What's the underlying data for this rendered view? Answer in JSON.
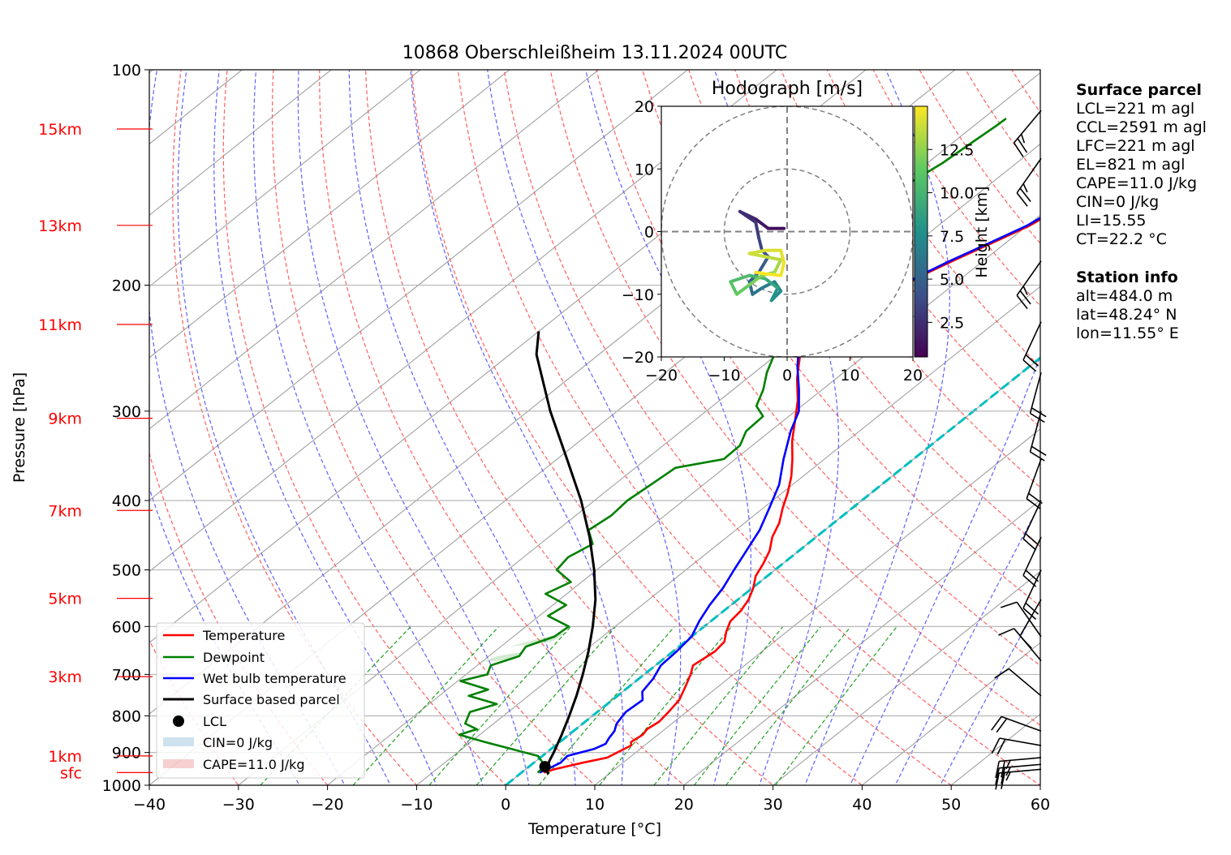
{
  "title": "10868 Oberschleißheim 13.11.2024 00UTC",
  "axes": {
    "xlabel": "Temperature [°C]",
    "ylabel": "Pressure [hPa]"
  },
  "colors": {
    "temperature": "#ff0000",
    "dewpoint": "#008000",
    "wetbulb": "#0000ff",
    "parcel": "#000000",
    "dry_adiabat": "#ff6060",
    "moist_adiabat": "#6060ff",
    "mixing_ratio": "#22a022",
    "zero_isotherm": "#00bfbf",
    "isotherm": "#a0a0a0"
  },
  "legend": {
    "temperature": "Temperature",
    "dewpoint": "Dewpoint",
    "wetbulb": "Wet bulb temperature",
    "parcel": "Surface based parcel",
    "lcl": "LCL",
    "cin": "CIN=0 J/kg",
    "cape": "CAPE=11.0 J/kg"
  },
  "surface_parcel": {
    "header": "Surface parcel",
    "lines": [
      "LCL=221 m agl",
      "CCL=2591 m agl",
      "LFC=221 m agl",
      "EL=821 m agl",
      "CAPE=11.0 J/kg",
      "CIN=0 J/kg",
      "LI=15.55",
      "CT=22.2 °C"
    ]
  },
  "station_info": {
    "header": "Station info",
    "lines": [
      "alt=484.0 m",
      "lat=48.24° N",
      "lon=11.55° E"
    ]
  },
  "hodograph": {
    "title": "Hodograph [m/s]",
    "colorbar_label": "Height [km]",
    "colorbar_ticks": [
      "2.5",
      "5.0",
      "7.5",
      "10.0",
      "12.5"
    ],
    "colorbar_tick_values": [
      2.5,
      5.0,
      7.5,
      10.0,
      12.5
    ],
    "colorbar_range": [
      0.5,
      15.0
    ],
    "xticks": [
      "−20",
      "−10",
      "0",
      "10",
      "20"
    ],
    "yticks": [
      "20",
      "10",
      "0",
      "−10",
      "−20"
    ],
    "range": [
      -20,
      20
    ],
    "rings": [
      10,
      20
    ],
    "trace": [
      {
        "u": -0.5,
        "v": 0.5,
        "h": 0.5
      },
      {
        "u": -3,
        "v": 0.5,
        "h": 1.0
      },
      {
        "u": -5,
        "v": 2,
        "h": 1.5
      },
      {
        "u": -7.5,
        "v": 3.2,
        "h": 2.0
      },
      {
        "u": -5,
        "v": 1.5,
        "h": 2.5
      },
      {
        "u": -4.5,
        "v": -1,
        "h": 3.0
      },
      {
        "u": -4,
        "v": -3,
        "h": 3.5
      },
      {
        "u": -3,
        "v": -4,
        "h": 4.0
      },
      {
        "u": -4.5,
        "v": -6.5,
        "h": 4.5
      },
      {
        "u": -6,
        "v": -8,
        "h": 5.0
      },
      {
        "u": -5.5,
        "v": -10,
        "h": 5.5
      },
      {
        "u": -4,
        "v": -9,
        "h": 6.0
      },
      {
        "u": -2,
        "v": -8,
        "h": 6.5
      },
      {
        "u": -1,
        "v": -9.5,
        "h": 7.0
      },
      {
        "u": -2.5,
        "v": -11,
        "h": 7.5
      },
      {
        "u": -1.5,
        "v": -9,
        "h": 8.0
      },
      {
        "u": -3.5,
        "v": -7.5,
        "h": 9.0
      },
      {
        "u": -6,
        "v": -7,
        "h": 10.0
      },
      {
        "u": -9,
        "v": -8,
        "h": 10.5
      },
      {
        "u": -8,
        "v": -10,
        "h": 11.0
      },
      {
        "u": -6,
        "v": -8.5,
        "h": 11.5
      },
      {
        "u": -4,
        "v": -7,
        "h": 12.0
      },
      {
        "u": -2,
        "v": -6.5,
        "h": 12.5
      },
      {
        "u": -1,
        "v": -4.5,
        "h": 13.0
      },
      {
        "u": -3.5,
        "v": -4,
        "h": 13.5
      },
      {
        "u": -6,
        "v": -3.5,
        "h": 13.8
      },
      {
        "u": -3.5,
        "v": -3,
        "h": 14.0
      },
      {
        "u": -1,
        "v": -3,
        "h": 14.2
      },
      {
        "u": -0.5,
        "v": -5,
        "h": 14.4
      },
      {
        "u": -1,
        "v": -7,
        "h": 14.6
      },
      {
        "u": -3,
        "v": -6.8,
        "h": 14.8
      },
      {
        "u": -5,
        "v": -6.5,
        "h": 15.0
      }
    ]
  },
  "chart_data": {
    "type": "line",
    "diagram": "skew-T log-p",
    "xlabel": "Temperature [°C]",
    "ylabel": "Pressure [hPa]",
    "xlim": [
      -40,
      60
    ],
    "ylim": [
      1000,
      100
    ],
    "y_scale": "log",
    "xticks": [
      "−40",
      "−30",
      "−20",
      "−10",
      "0",
      "10",
      "20",
      "30",
      "40",
      "50",
      "60"
    ],
    "yticks": [
      {
        "p": 1000,
        "label": "1000"
      },
      {
        "p": 900,
        "label": "900"
      },
      {
        "p": 800,
        "label": "800"
      },
      {
        "p": 700,
        "label": "700"
      },
      {
        "p": 600,
        "label": "600"
      },
      {
        "p": 500,
        "label": "500"
      },
      {
        "p": 400,
        "label": "400"
      },
      {
        "p": 300,
        "label": "300"
      },
      {
        "p": 200,
        "label": "200"
      },
      {
        "p": 100,
        "label": "100"
      }
    ],
    "height_markers": [
      {
        "label": "sfc",
        "p": 960
      },
      {
        "label": "1km",
        "p": 910
      },
      {
        "label": "3km",
        "p": 705
      },
      {
        "label": "5km",
        "p": 548
      },
      {
        "label": "7km",
        "p": 413
      },
      {
        "label": "9km",
        "p": 307
      },
      {
        "label": "11km",
        "p": 227
      },
      {
        "label": "13km",
        "p": 165
      },
      {
        "label": "15km",
        "p": 121
      }
    ],
    "series": [
      {
        "name": "Temperature",
        "key": "temperature",
        "points": [
          [
            960,
            2.5
          ],
          [
            950,
            3.2
          ],
          [
            930,
            5.5
          ],
          [
            915,
            7.5
          ],
          [
            880,
            8.5
          ],
          [
            870,
            8.0
          ],
          [
            850,
            8.3
          ],
          [
            835,
            8.0
          ],
          [
            815,
            8.3
          ],
          [
            790,
            8.0
          ],
          [
            760,
            7.5
          ],
          [
            730,
            6.4
          ],
          [
            700,
            5.2
          ],
          [
            680,
            4.2
          ],
          [
            650,
            4.7
          ],
          [
            630,
            4.4
          ],
          [
            610,
            3.2
          ],
          [
            590,
            2.2
          ],
          [
            570,
            1.9
          ],
          [
            550,
            1.2
          ],
          [
            530,
            0.1
          ],
          [
            510,
            -1.3
          ],
          [
            490,
            -2.2
          ],
          [
            470,
            -3.3
          ],
          [
            450,
            -4.9
          ],
          [
            430,
            -6.1
          ],
          [
            410,
            -7.8
          ],
          [
            390,
            -9.4
          ],
          [
            370,
            -11.3
          ],
          [
            350,
            -13.6
          ],
          [
            330,
            -16.2
          ],
          [
            310,
            -18.6
          ],
          [
            290,
            -21.2
          ],
          [
            270,
            -24.4
          ],
          [
            250,
            -27.4
          ],
          [
            235,
            -30.4
          ],
          [
            228,
            -31.0
          ],
          [
            222,
            -28.2
          ],
          [
            215,
            -27.6
          ],
          [
            205,
            -25.6
          ],
          [
            195,
            -25.0
          ],
          [
            185,
            -23.4
          ],
          [
            175,
            -21.6
          ],
          [
            165,
            -19.7
          ],
          [
            155,
            -18.7
          ],
          [
            145,
            -17.4
          ],
          [
            135,
            -15.6
          ],
          [
            128,
            -14.6
          ],
          [
            122,
            -14.0
          ],
          [
            118,
            -13.5
          ]
        ]
      },
      {
        "name": "Wet bulb temperature",
        "key": "wetbulb",
        "points": [
          [
            960,
            2.0
          ],
          [
            950,
            2.4
          ],
          [
            930,
            3.0
          ],
          [
            910,
            2.8
          ],
          [
            890,
            4.8
          ],
          [
            875,
            5.4
          ],
          [
            860,
            5.0
          ],
          [
            840,
            4.6
          ],
          [
            820,
            3.8
          ],
          [
            790,
            3.2
          ],
          [
            760,
            3.4
          ],
          [
            740,
            2.2
          ],
          [
            710,
            1.6
          ],
          [
            680,
            0.6
          ],
          [
            650,
            0.4
          ],
          [
            620,
            0.0
          ],
          [
            590,
            -1.3
          ],
          [
            560,
            -2.4
          ],
          [
            530,
            -3.3
          ],
          [
            500,
            -4.6
          ],
          [
            470,
            -5.9
          ],
          [
            440,
            -7.3
          ],
          [
            410,
            -9.3
          ],
          [
            380,
            -11.5
          ],
          [
            350,
            -14.6
          ],
          [
            320,
            -17.7
          ],
          [
            300,
            -19.6
          ],
          [
            280,
            -22.6
          ],
          [
            260,
            -26.0
          ],
          [
            240,
            -29.3
          ],
          [
            228,
            -31.0
          ],
          [
            222,
            -28.2
          ],
          [
            215,
            -27.7
          ],
          [
            205,
            -25.8
          ],
          [
            195,
            -25.2
          ],
          [
            185,
            -23.7
          ],
          [
            175,
            -21.9
          ],
          [
            165,
            -20.0
          ],
          [
            155,
            -19.0
          ],
          [
            145,
            -17.8
          ],
          [
            135,
            -16.1
          ],
          [
            128,
            -15.0
          ],
          [
            122,
            -14.3
          ],
          [
            118,
            -13.6
          ]
        ]
      },
      {
        "name": "Dewpoint",
        "key": "dewpoint",
        "points": [
          [
            960,
            1.8
          ],
          [
            950,
            1.8
          ],
          [
            930,
            1.0
          ],
          [
            910,
            -0.5
          ],
          [
            890,
            -4.4
          ],
          [
            870,
            -8.4
          ],
          [
            850,
            -12.3
          ],
          [
            835,
            -11.1
          ],
          [
            820,
            -13.2
          ],
          [
            790,
            -14.3
          ],
          [
            770,
            -12.4
          ],
          [
            750,
            -16.7
          ],
          [
            735,
            -15.4
          ],
          [
            715,
            -19.7
          ],
          [
            700,
            -17.6
          ],
          [
            680,
            -18.5
          ],
          [
            660,
            -16.6
          ],
          [
            640,
            -17.2
          ],
          [
            620,
            -15.4
          ],
          [
            600,
            -15.2
          ],
          [
            580,
            -19.0
          ],
          [
            560,
            -18.5
          ],
          [
            540,
            -22.4
          ],
          [
            520,
            -21.2
          ],
          [
            500,
            -24.5
          ],
          [
            480,
            -25.0
          ],
          [
            460,
            -24.1
          ],
          [
            440,
            -26.5
          ],
          [
            420,
            -26.0
          ],
          [
            400,
            -26.3
          ],
          [
            380,
            -25.9
          ],
          [
            360,
            -25.5
          ],
          [
            350,
            -21.3
          ],
          [
            335,
            -21.4
          ],
          [
            320,
            -22.7
          ],
          [
            305,
            -22.9
          ],
          [
            295,
            -25.1
          ],
          [
            280,
            -26.6
          ],
          [
            265,
            -28.6
          ],
          [
            250,
            -30.3
          ],
          [
            235,
            -32.4
          ],
          [
            220,
            -35.1
          ],
          [
            205,
            -37.9
          ],
          [
            195,
            -38.3
          ],
          [
            185,
            -40.2
          ],
          [
            175,
            -42.8
          ],
          [
            165,
            -41.1
          ],
          [
            155,
            -39.5
          ],
          [
            145,
            -39.3
          ],
          [
            135,
            -38.3
          ],
          [
            125,
            -37.8
          ],
          [
            120,
            -37.5
          ],
          [
            117,
            -37.4
          ]
        ]
      },
      {
        "name": "Surface based parcel",
        "key": "parcel",
        "points": [
          [
            965,
            3.2
          ],
          [
            950,
            2.4
          ],
          [
            925,
            1.5
          ],
          [
            900,
            0.8
          ],
          [
            850,
            -0.8
          ],
          [
            800,
            -2.6
          ],
          [
            750,
            -4.6
          ],
          [
            700,
            -6.9
          ],
          [
            650,
            -9.5
          ],
          [
            600,
            -12.5
          ],
          [
            550,
            -16.0
          ],
          [
            500,
            -20.3
          ],
          [
            450,
            -25.4
          ],
          [
            400,
            -31.5
          ],
          [
            350,
            -38.9
          ],
          [
            300,
            -47.5
          ],
          [
            250,
            -57.0
          ],
          [
            232,
            -60.0
          ]
        ]
      }
    ],
    "lcl": {
      "p": 942,
      "t": 1.8
    },
    "cin": "CIN=0 J/kg",
    "cape": "CAPE=11.0 J/kg",
    "surface_pressure": 960,
    "wind_barbs": [
      {
        "p": 950,
        "dir": 265,
        "speed_kt": 25
      },
      {
        "p": 935,
        "dir": 265,
        "speed_kt": 25
      },
      {
        "p": 915,
        "dir": 265,
        "speed_kt": 25
      },
      {
        "p": 880,
        "dir": 280,
        "speed_kt": 20
      },
      {
        "p": 840,
        "dir": 290,
        "speed_kt": 20
      },
      {
        "p": 750,
        "dir": 310,
        "speed_kt": 10
      },
      {
        "p": 670,
        "dir": 320,
        "speed_kt": 10
      },
      {
        "p": 620,
        "dir": 325,
        "speed_kt": 10
      },
      {
        "p": 550,
        "dir": 210,
        "speed_kt": 10
      },
      {
        "p": 500,
        "dir": 205,
        "speed_kt": 20
      },
      {
        "p": 450,
        "dir": 205,
        "speed_kt": 20
      },
      {
        "p": 400,
        "dir": 205,
        "speed_kt": 20
      },
      {
        "p": 350,
        "dir": 200,
        "speed_kt": 20
      },
      {
        "p": 300,
        "dir": 195,
        "speed_kt": 20
      },
      {
        "p": 265,
        "dir": 195,
        "speed_kt": 20
      },
      {
        "p": 225,
        "dir": 205,
        "speed_kt": 20
      },
      {
        "p": 185,
        "dir": 215,
        "speed_kt": 25
      },
      {
        "p": 133,
        "dir": 215,
        "speed_kt": 25
      },
      {
        "p": 114,
        "dir": 220,
        "speed_kt": 25
      }
    ],
    "grid": true,
    "legend_position": "lower-left"
  }
}
